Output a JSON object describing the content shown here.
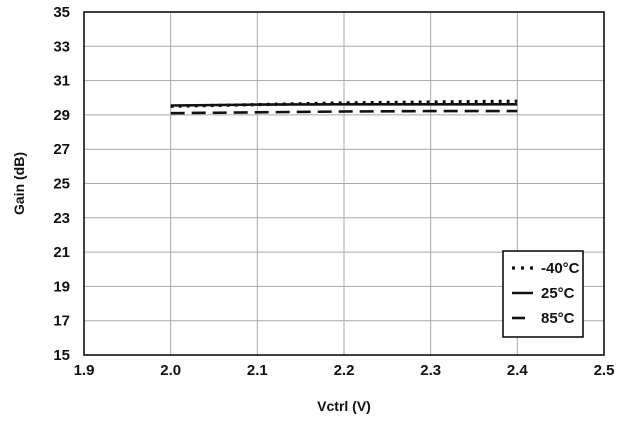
{
  "chart_data": {
    "type": "line",
    "title": "",
    "xlabel": "Vctrl (V)",
    "ylabel": "Gain (dB)",
    "xlim": [
      1.9,
      2.5
    ],
    "ylim": [
      15,
      35
    ],
    "xticks": [
      "1.9",
      "2.0",
      "2.1",
      "2.2",
      "2.3",
      "2.4",
      "2.5"
    ],
    "yticks": [
      "15",
      "17",
      "19",
      "21",
      "23",
      "25",
      "27",
      "29",
      "31",
      "33",
      "35"
    ],
    "grid": true,
    "legend_position": "bottom-right",
    "series": [
      {
        "name": "-40°C",
        "style": "dotted",
        "x": [
          2.0,
          2.1,
          2.2,
          2.3,
          2.4
        ],
        "y": [
          29.5,
          29.6,
          29.7,
          29.75,
          29.8
        ]
      },
      {
        "name": "25°C",
        "style": "solid",
        "x": [
          2.0,
          2.1,
          2.2,
          2.3,
          2.4
        ],
        "y": [
          29.55,
          29.6,
          29.62,
          29.62,
          29.62
        ]
      },
      {
        "name": "85°C",
        "style": "dashed",
        "x": [
          2.0,
          2.1,
          2.2,
          2.3,
          2.4
        ],
        "y": [
          29.1,
          29.15,
          29.2,
          29.22,
          29.22
        ]
      }
    ]
  }
}
